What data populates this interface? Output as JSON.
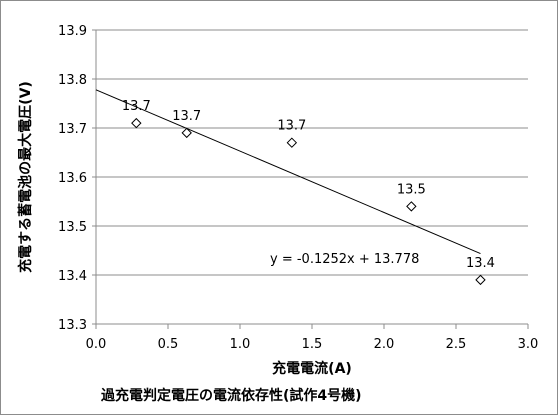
{
  "chart_data": {
    "type": "scatter",
    "title": "",
    "xlabel": "充電電流(A)",
    "ylabel": "充電する蓄電池の最大電圧(V)",
    "xlim": [
      0.0,
      3.0
    ],
    "ylim": [
      13.3,
      13.9
    ],
    "x_ticks": [
      "0.0",
      "0.5",
      "1.0",
      "1.5",
      "2.0",
      "2.5",
      "3.0"
    ],
    "y_ticks": [
      "13.3",
      "13.4",
      "13.5",
      "13.6",
      "13.7",
      "13.8",
      "13.9"
    ],
    "grid": "horizontal",
    "marker": "diamond",
    "series": [
      {
        "points": [
          {
            "x": 0.28,
            "y": 13.71,
            "label": "13.7"
          },
          {
            "x": 0.63,
            "y": 13.69,
            "label": "13.7"
          },
          {
            "x": 1.36,
            "y": 13.67,
            "label": "13.7"
          },
          {
            "x": 2.19,
            "y": 13.54,
            "label": "13.5"
          },
          {
            "x": 2.67,
            "y": 13.39,
            "label": "13.4"
          }
        ]
      }
    ],
    "trendline": {
      "slope": -0.1252,
      "intercept": 13.778,
      "x_range": [
        0.0,
        2.67
      ],
      "equation_label": "y = -0.1252x + 13.778"
    },
    "caption": "過充電判定電圧の電流依存性(試作4号機)"
  }
}
